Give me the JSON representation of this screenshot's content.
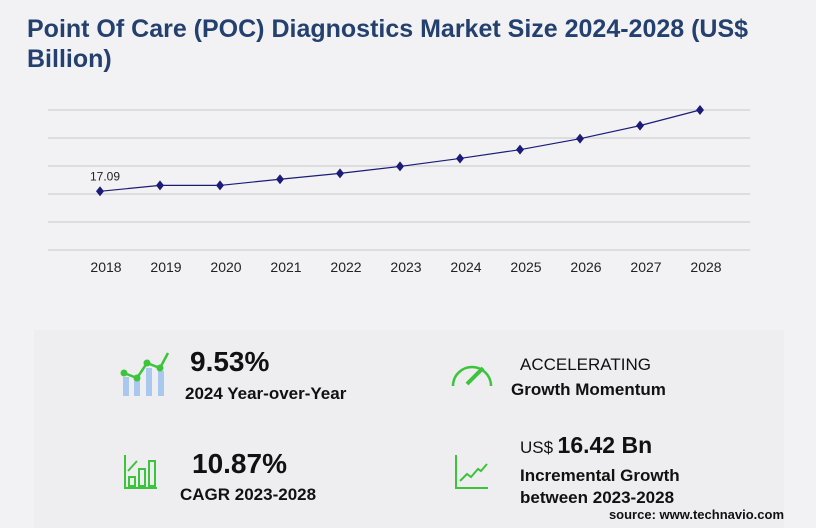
{
  "title": "Point Of Care (POC) Diagnostics Market Size 2024-2028 (US$ Billion)",
  "chart_data": {
    "type": "line",
    "categories": [
      "2018",
      "2019",
      "2020",
      "2021",
      "2022",
      "2023",
      "2024",
      "2025",
      "2026",
      "2027",
      "2028"
    ],
    "values": [
      17.09,
      18.8,
      18.8,
      20.6,
      22.3,
      24.33,
      26.65,
      29.2,
      32.4,
      36.2,
      40.75
    ],
    "data_labels": {
      "2018": "17.09"
    },
    "ylim": [
      0,
      40.75
    ],
    "grid": true,
    "line_color": "#1b1b7a"
  },
  "stats": {
    "yoy_value": "9.53%",
    "yoy_label": "2024 Year-over-Year",
    "momentum_value": "ACCELERATING",
    "momentum_label": "Growth Momentum",
    "cagr_value": "10.87%",
    "cagr_label": "CAGR 2023-2028",
    "incr_prefix": "US$",
    "incr_value": "16.42 Bn",
    "incr_label1": "Incremental Growth",
    "incr_label2": "between 2023-2028"
  },
  "source": "source: www.technavio.com",
  "colors": {
    "title": "#24406e",
    "icon_green": "#3cc43c",
    "icon_blue": "#a8c8f0"
  }
}
